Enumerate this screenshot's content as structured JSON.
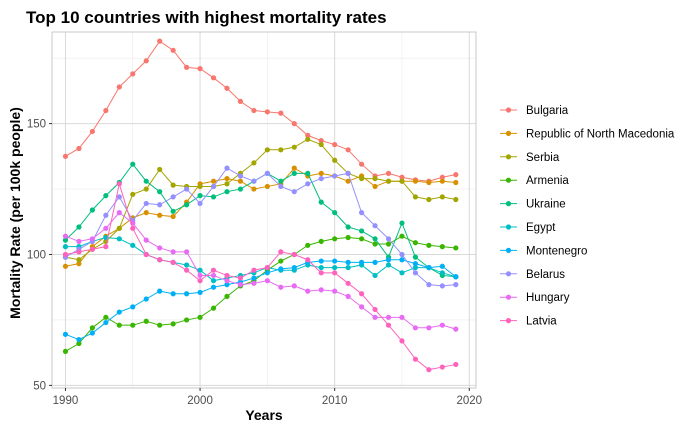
{
  "chart_data": {
    "type": "line",
    "title": "Top 10 countries with highest mortality rates",
    "xlabel": "Years",
    "ylabel": "Mortality Rate (per 100k people)",
    "xlim": [
      1989,
      2020.5
    ],
    "ylim": [
      49,
      185
    ],
    "xticks": [
      1990,
      2000,
      2010,
      2020
    ],
    "yticks": [
      50,
      100,
      150
    ],
    "grid": true,
    "legend_position": "right",
    "x": [
      1990,
      1991,
      1992,
      1993,
      1994,
      1995,
      1996,
      1997,
      1998,
      1999,
      2000,
      2001,
      2002,
      2003,
      2004,
      2005,
      2006,
      2007,
      2008,
      2009,
      2010,
      2011,
      2012,
      2013,
      2014,
      2015,
      2016,
      2017,
      2018,
      2019
    ],
    "series": [
      {
        "name": "Bulgaria",
        "color": "#F8766D",
        "values": [
          137.5,
          140.5,
          147,
          155,
          164,
          169,
          174,
          181.5,
          178,
          171.5,
          171,
          167.5,
          163.5,
          158.5,
          155,
          154.5,
          154,
          150,
          145.5,
          143.5,
          142,
          140,
          134.5,
          130,
          131,
          129.5,
          128.5,
          128,
          129.5,
          130.5
        ]
      },
      {
        "name": "Republic of North Macedonia",
        "color": "#D89000",
        "values": [
          95.5,
          96.5,
          103,
          107,
          110,
          114,
          116,
          115,
          114.5,
          120,
          127,
          128,
          129,
          128,
          125,
          126,
          127,
          133,
          130,
          131,
          130,
          128,
          130,
          126,
          128,
          128,
          128,
          127.5,
          128,
          127.5
        ]
      },
      {
        "name": "Serbia",
        "color": "#A3A500",
        "values": [
          99,
          98,
          102,
          105,
          110,
          123,
          125,
          132.5,
          126.5,
          126,
          126,
          126,
          127,
          131,
          135,
          140,
          140,
          141,
          144,
          142,
          136,
          131,
          129,
          129,
          128,
          128,
          122,
          121,
          122,
          121
        ]
      },
      {
        "name": "Armenia",
        "color": "#39B600",
        "values": [
          63,
          66,
          72,
          76,
          73,
          73,
          74.5,
          73,
          73.5,
          75,
          76,
          79.5,
          84,
          88,
          90,
          94,
          97.5,
          100,
          103.5,
          105,
          106,
          106.5,
          106,
          104,
          104,
          107,
          104.5,
          103.5,
          103,
          102.5
        ]
      },
      {
        "name": "Ukraine",
        "color": "#00BF7D",
        "values": [
          105.5,
          110.5,
          117,
          122.5,
          127.5,
          134.5,
          128,
          124,
          116.5,
          119,
          122.5,
          122,
          124,
          125,
          128,
          131,
          128,
          131,
          131,
          120,
          116,
          110.5,
          109,
          106,
          99,
          112,
          99,
          95,
          92,
          91.5
        ]
      },
      {
        "name": "Egypt",
        "color": "#00BFC4",
        "values": [
          103,
          103,
          105,
          106.5,
          106,
          103.5,
          100,
          98,
          97,
          96,
          94,
          90,
          91,
          92,
          93,
          95,
          94,
          94,
          96,
          95,
          95,
          95,
          96,
          92,
          96,
          93,
          95,
          95,
          93,
          91.5
        ]
      },
      {
        "name": "Montenegro",
        "color": "#00B0F6",
        "values": [
          69.5,
          67.5,
          70,
          74,
          78,
          80,
          83,
          86,
          85,
          85,
          85.5,
          87.5,
          88.5,
          89.5,
          91,
          93,
          94.5,
          95,
          97,
          97.5,
          97.5,
          97,
          97,
          97,
          98,
          98,
          96.5,
          95,
          95.5,
          91.5
        ]
      },
      {
        "name": "Belarus",
        "color": "#9590FF",
        "values": [
          99,
          102,
          105,
          115,
          122,
          113,
          119.5,
          119,
          122,
          125,
          119.5,
          126,
          133,
          130,
          128,
          131,
          126,
          124,
          127,
          129,
          130,
          131,
          116,
          111,
          106,
          100,
          93,
          88.5,
          88,
          88.5
        ]
      },
      {
        "name": "Hungary",
        "color": "#E76BF3",
        "values": [
          107,
          105,
          106,
          110,
          116,
          112,
          105.5,
          102.5,
          101,
          101,
          92,
          92,
          90,
          88.5,
          89,
          90,
          87.5,
          88,
          86,
          86.5,
          86,
          84,
          80,
          76,
          76,
          76,
          72,
          72,
          73,
          71.5
        ]
      },
      {
        "name": "Latvia",
        "color": "#FF62BC",
        "values": [
          100,
          101,
          102,
          103,
          127,
          110,
          100,
          98,
          97,
          94,
          90,
          94,
          92,
          91,
          94,
          95,
          101,
          100,
          98,
          93,
          93,
          89,
          85,
          79,
          73,
          67,
          60,
          56,
          57,
          58
        ]
      }
    ]
  }
}
